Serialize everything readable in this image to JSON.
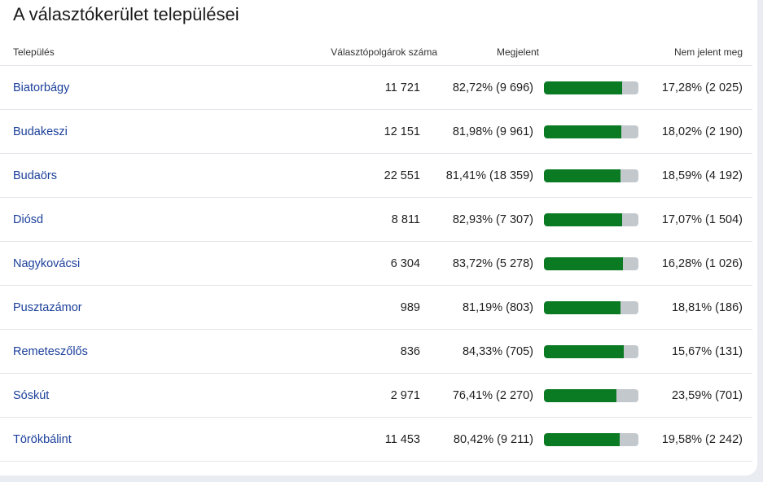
{
  "title": "A választókerület települései",
  "columns": {
    "town": "Település",
    "voters": "Választópolgárok száma",
    "present": "Megjelent",
    "absent": "Nem jelent meg"
  },
  "colors": {
    "bar_fill": "#0a7a23",
    "bar_track": "#c3c8cc",
    "link": "#1b3f9a"
  },
  "rows": [
    {
      "town": "Biatorbágy",
      "voters": "11 721",
      "present": "82,72% (9 696)",
      "present_pct": 82.72,
      "absent": "17,28% (2 025)"
    },
    {
      "town": "Budakeszi",
      "voters": "12 151",
      "present": "81,98% (9 961)",
      "present_pct": 81.98,
      "absent": "18,02% (2 190)"
    },
    {
      "town": "Budaörs",
      "voters": "22 551",
      "present": "81,41% (18 359)",
      "present_pct": 81.41,
      "absent": "18,59% (4 192)"
    },
    {
      "town": "Diósd",
      "voters": "8 811",
      "present": "82,93% (7 307)",
      "present_pct": 82.93,
      "absent": "17,07% (1 504)"
    },
    {
      "town": "Nagykovácsi",
      "voters": "6 304",
      "present": "83,72% (5 278)",
      "present_pct": 83.72,
      "absent": "16,28% (1 026)"
    },
    {
      "town": "Pusztazámor",
      "voters": "989",
      "present": "81,19% (803)",
      "present_pct": 81.19,
      "absent": "18,81% (186)"
    },
    {
      "town": "Remeteszőlős",
      "voters": "836",
      "present": "84,33% (705)",
      "present_pct": 84.33,
      "absent": "15,67% (131)"
    },
    {
      "town": "Sóskút",
      "voters": "2 971",
      "present": "76,41% (2 270)",
      "present_pct": 76.41,
      "absent": "23,59% (701)"
    },
    {
      "town": "Törökbálint",
      "voters": "11 453",
      "present": "80,42% (9 211)",
      "present_pct": 80.42,
      "absent": "19,58% (2 242)"
    }
  ]
}
